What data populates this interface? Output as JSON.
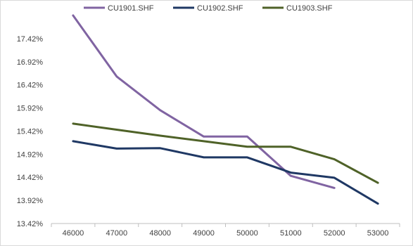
{
  "chart_data": {
    "type": "line",
    "title": "",
    "xlabel": "",
    "ylabel": "",
    "x": [
      46000,
      47000,
      48000,
      49000,
      50000,
      51000,
      52000,
      53000
    ],
    "x_tick_labels": [
      "46000",
      "47000",
      "48000",
      "49000",
      "50000",
      "51000",
      "52000",
      "53000"
    ],
    "ylim": [
      13.42,
      17.92
    ],
    "y_ticks": [
      13.42,
      13.92,
      14.42,
      14.92,
      15.42,
      15.92,
      16.42,
      16.92,
      17.42
    ],
    "y_tick_labels": [
      "13.42%",
      "13.92%",
      "14.42%",
      "14.92%",
      "15.42%",
      "15.92%",
      "16.42%",
      "16.92%",
      "17.42%"
    ],
    "grid": false,
    "legend_position": "top",
    "series": [
      {
        "name": "CU1901.SHF",
        "color": "#8064a2",
        "values": [
          17.92,
          16.6,
          15.87,
          15.3,
          15.3,
          14.45,
          14.19,
          null
        ]
      },
      {
        "name": "CU1902.SHF",
        "color": "#1f3864",
        "values": [
          15.2,
          15.04,
          15.05,
          14.85,
          14.85,
          14.52,
          14.41,
          13.85
        ]
      },
      {
        "name": "CU1903.SHF",
        "color": "#4f6228",
        "values": [
          15.58,
          15.45,
          15.32,
          15.2,
          15.08,
          15.08,
          14.81,
          14.3
        ]
      }
    ]
  }
}
